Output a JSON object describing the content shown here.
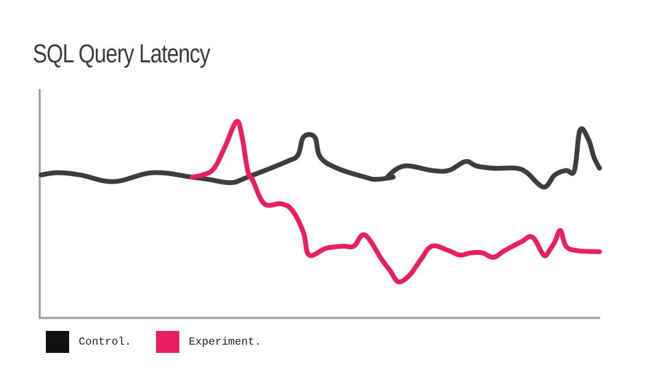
{
  "chart_data": {
    "type": "line",
    "title": "SQL Query Latency",
    "xlabel": "",
    "ylabel": "",
    "xlim": [
      0,
      100
    ],
    "ylim": [
      0,
      100
    ],
    "grid": false,
    "legend_position": "bottom-left",
    "series": [
      {
        "name": "Control.",
        "color": "#3d3d3d",
        "points": [
          [
            0,
            63
          ],
          [
            3,
            64
          ],
          [
            7,
            63
          ],
          [
            13,
            60
          ],
          [
            20,
            64
          ],
          [
            27,
            62
          ],
          [
            30,
            61
          ],
          [
            34,
            59.5
          ],
          [
            37,
            62
          ],
          [
            44,
            69
          ],
          [
            46,
            72
          ],
          [
            47,
            80
          ],
          [
            49,
            80
          ],
          [
            50,
            71
          ],
          [
            53,
            66
          ],
          [
            58,
            62
          ],
          [
            60,
            61
          ],
          [
            63,
            62
          ],
          [
            62,
            62
          ],
          [
            65,
            67
          ],
          [
            70,
            65
          ],
          [
            73,
            65
          ],
          [
            76,
            69
          ],
          [
            78,
            67
          ],
          [
            81,
            66
          ],
          [
            85,
            66
          ],
          [
            87,
            64
          ],
          [
            90,
            57.5
          ],
          [
            92,
            63
          ],
          [
            94,
            65
          ],
          [
            95.5,
            65
          ],
          [
            96.5,
            83
          ],
          [
            98,
            79
          ],
          [
            99,
            71
          ],
          [
            100,
            66
          ]
        ]
      },
      {
        "name": "Experiment.",
        "color": "#e91e63",
        "points": [
          [
            27,
            62
          ],
          [
            29,
            63
          ],
          [
            31,
            66
          ],
          [
            33,
            76
          ],
          [
            35,
            87
          ],
          [
            36,
            80
          ],
          [
            37,
            65
          ],
          [
            38,
            60
          ],
          [
            40,
            50
          ],
          [
            43,
            50
          ],
          [
            45,
            47
          ],
          [
            47,
            37
          ],
          [
            48,
            27
          ],
          [
            51,
            30
          ],
          [
            54,
            31
          ],
          [
            56,
            31
          ],
          [
            58,
            36
          ],
          [
            61,
            25
          ],
          [
            62.5,
            20
          ],
          [
            64,
            15
          ],
          [
            66,
            18
          ],
          [
            68,
            25
          ],
          [
            70,
            31
          ],
          [
            73,
            29
          ],
          [
            75,
            27
          ],
          [
            77,
            28
          ],
          [
            79,
            28
          ],
          [
            81,
            26
          ],
          [
            83,
            29
          ],
          [
            86,
            33
          ],
          [
            88,
            35
          ],
          [
            90,
            27
          ],
          [
            91,
            29
          ],
          [
            92,
            33
          ],
          [
            93,
            38
          ],
          [
            94,
            31
          ],
          [
            96,
            29
          ],
          [
            100,
            28.5
          ]
        ]
      }
    ]
  },
  "colors": {
    "axis": "#9e9e9e",
    "title": "#3d3d3d",
    "legend_text": "#222222"
  }
}
